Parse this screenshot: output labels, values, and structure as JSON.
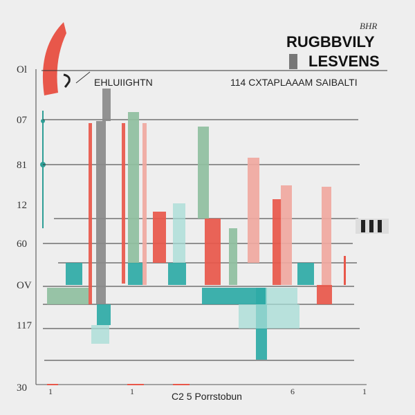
{
  "chart_data": {
    "type": "bar",
    "title": "RUGBBVILY",
    "subtitle": "LESVENS",
    "corner_mark": "BHR",
    "header_left": "EHLUIIGHTN",
    "header_right": "114 CXTAPLAAAM SAIBALTI",
    "xlabel": "C2 5 Porrstobun",
    "y_tick_labels": [
      "Ol",
      "07",
      "81",
      "12",
      "60",
      "OV",
      "117",
      "30"
    ],
    "x_tick_labels": [
      "1",
      "1",
      "6",
      "1"
    ],
    "grid": true,
    "colors": {
      "red": "#e8574a",
      "teal": "#2eaaa6",
      "sage": "#8fbf9f",
      "grey": "#8a8a8a",
      "pink": "#f0a8a0",
      "light_teal": "#a6dcd6",
      "dark": "#333333"
    },
    "series": [
      {
        "color_key": "red",
        "bars": [
          {
            "x": 128,
            "w": 5,
            "top": 178,
            "bottom": 440
          },
          {
            "x": 176,
            "w": 5,
            "top": 178,
            "bottom": 410
          },
          {
            "x": 221,
            "w": 19,
            "top": 306,
            "bottom": 380
          },
          {
            "x": 296,
            "w": 23,
            "top": 316,
            "bottom": 412
          },
          {
            "x": 394,
            "w": 13,
            "top": 288,
            "bottom": 412
          },
          {
            "x": 458,
            "w": 22,
            "top": 412,
            "bottom": 440
          }
        ]
      },
      {
        "color_key": "teal",
        "bars": [
          {
            "x": 95,
            "w": 24,
            "top": 380,
            "bottom": 412
          },
          {
            "x": 140,
            "w": 20,
            "top": 440,
            "bottom": 470
          },
          {
            "x": 185,
            "w": 22,
            "top": 380,
            "bottom": 412
          },
          {
            "x": 243,
            "w": 26,
            "top": 380,
            "bottom": 412
          },
          {
            "x": 292,
            "w": 92,
            "top": 416,
            "bottom": 440
          },
          {
            "x": 430,
            "w": 24,
            "top": 380,
            "bottom": 412
          },
          {
            "x": 370,
            "w": 16,
            "top": 416,
            "bottom": 520
          }
        ]
      },
      {
        "color_key": "sage",
        "bars": [
          {
            "x": 185,
            "w": 16,
            "top": 162,
            "bottom": 380
          },
          {
            "x": 286,
            "w": 16,
            "top": 183,
            "bottom": 316
          },
          {
            "x": 331,
            "w": 12,
            "top": 330,
            "bottom": 412
          },
          {
            "x": 68,
            "w": 60,
            "top": 416,
            "bottom": 440
          }
        ]
      },
      {
        "color_key": "grey",
        "bars": [
          {
            "x": 139,
            "w": 14,
            "top": 175,
            "bottom": 440
          },
          {
            "x": 148,
            "w": 12,
            "top": 128,
            "bottom": 175
          }
        ]
      },
      {
        "color_key": "pink",
        "bars": [
          {
            "x": 206,
            "w": 6,
            "top": 178,
            "bottom": 412
          },
          {
            "x": 358,
            "w": 17,
            "top": 228,
            "bottom": 380
          },
          {
            "x": 406,
            "w": 16,
            "top": 268,
            "bottom": 412
          },
          {
            "x": 465,
            "w": 14,
            "top": 270,
            "bottom": 412
          }
        ]
      },
      {
        "color_key": "light_teal",
        "bars": [
          {
            "x": 250,
            "w": 18,
            "top": 294,
            "bottom": 380
          },
          {
            "x": 132,
            "w": 26,
            "top": 470,
            "bottom": 497
          },
          {
            "x": 345,
            "w": 88,
            "top": 440,
            "bottom": 475
          },
          {
            "x": 384,
            "w": 46,
            "top": 416,
            "bottom": 440
          }
        ]
      }
    ]
  }
}
